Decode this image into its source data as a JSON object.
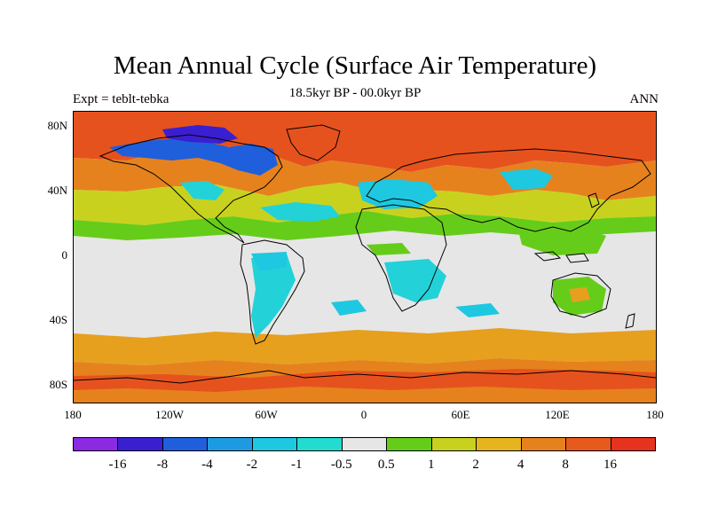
{
  "header": {
    "title": "Mean Annual Cycle (Surface Air Temperature)",
    "subtitle": "18.5kyr BP - 00.0kyr BP",
    "left_string": "Expt = teblt-tebka",
    "right_string": "ANN"
  },
  "axes": {
    "lat_labels": [
      "80N",
      "40N",
      "0",
      "40S",
      "80S"
    ],
    "lon_labels": [
      "180",
      "120W",
      "60W",
      "0",
      "60E",
      "120E",
      "180"
    ]
  },
  "colorbar": {
    "labels": [
      "-16",
      "-8",
      "-4",
      "-2",
      "-1",
      "-0.5",
      "0.5",
      "1",
      "2",
      "4",
      "8",
      "16"
    ],
    "colors": [
      "#8a2be2",
      "#3a1fd0",
      "#1f5fdc",
      "#1e9be0",
      "#1ec8e0",
      "#22dcd0",
      "#e6e6e6",
      "#66cc1a",
      "#c8d21e",
      "#e6b41e",
      "#e6821e",
      "#e65a1e",
      "#e6321e"
    ]
  },
  "palette": {
    "ocean_neutral": "#e6e6e6",
    "warm_strong": "#e6521e",
    "warm_medium": "#e6a01e",
    "warm_light": "#c8d21e",
    "green": "#66cc1a",
    "cyan": "#22d2d8",
    "blue": "#1f5fdc",
    "coast": "#000000"
  }
}
